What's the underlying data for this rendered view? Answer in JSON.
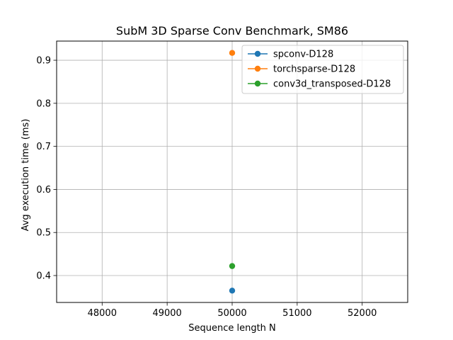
{
  "chart_data": {
    "type": "line",
    "title": "SubM 3D Sparse Conv Benchmark, SM86",
    "xlabel": "Sequence length N",
    "ylabel": "Avg execution time (ms)",
    "xlim": [
      47300,
      52700
    ],
    "ylim": [
      0.3375,
      0.9445
    ],
    "x_ticks": [
      48000,
      49000,
      50000,
      51000,
      52000
    ],
    "x_tick_labels": [
      "48000",
      "49000",
      "50000",
      "51000",
      "52000"
    ],
    "y_ticks": [
      0.4,
      0.5,
      0.6,
      0.7,
      0.8,
      0.9
    ],
    "y_tick_labels": [
      "0.4",
      "0.5",
      "0.6",
      "0.7",
      "0.8",
      "0.9"
    ],
    "grid": true,
    "legend_position": "top-right",
    "series": [
      {
        "name": "spconv-D128",
        "color": "#1f77b4",
        "x": [
          50000
        ],
        "y": [
          0.365
        ]
      },
      {
        "name": "torchsparse-D128",
        "color": "#ff7f0e",
        "x": [
          50000
        ],
        "y": [
          0.917
        ]
      },
      {
        "name": "conv3d_transposed-D128",
        "color": "#2ca02c",
        "x": [
          50000
        ],
        "y": [
          0.422
        ]
      }
    ]
  }
}
